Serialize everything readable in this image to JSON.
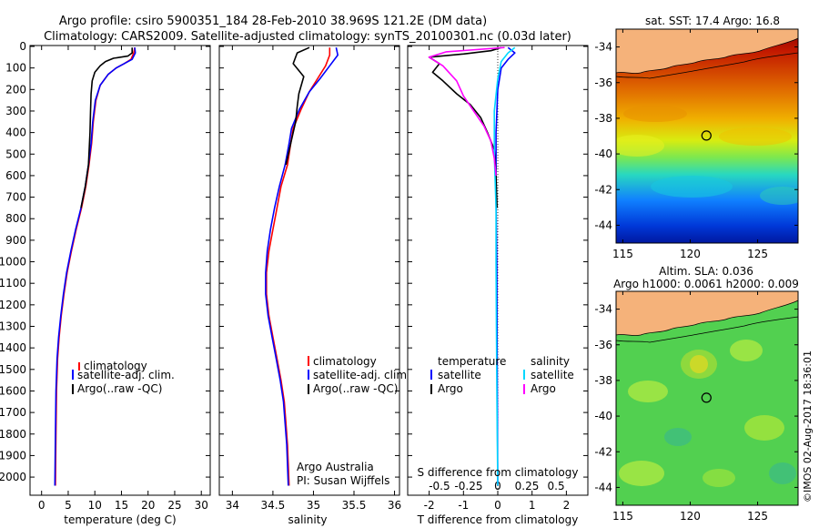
{
  "header": {
    "title_line1": "Argo profile: csiro 5900351_184 28-Feb-2010 38.969S 121.2E (DM data)",
    "title_line2": "Climatology: CARS2009. Satellite-adjusted climatology: synTS_20100301.nc (0.03d later)"
  },
  "chart_data": [
    {
      "id": "temperature",
      "type": "line",
      "xlabel": "temperature (deg C)",
      "xlim": [
        -2,
        31.5
      ],
      "ylim": [
        0,
        2080
      ],
      "x_ticks": [
        0,
        5,
        10,
        15,
        20,
        25,
        30
      ],
      "y_ticks": [
        0,
        100,
        200,
        300,
        400,
        500,
        600,
        700,
        800,
        900,
        1000,
        1100,
        1200,
        1300,
        1400,
        1500,
        1600,
        1700,
        1800,
        1900,
        2000
      ],
      "legend": [
        "climatology",
        "satellite-adj. clim.",
        "Argo(..raw -QC)"
      ],
      "series": [
        {
          "name": "climatology",
          "color": "#ff0000",
          "points": [
            [
              17.5,
              5
            ],
            [
              17.3,
              30
            ],
            [
              16.8,
              60
            ],
            [
              15.5,
              80
            ],
            [
              14,
              100
            ],
            [
              12.5,
              130
            ],
            [
              11,
              180
            ],
            [
              10.2,
              250
            ],
            [
              9.7,
              350
            ],
            [
              9.4,
              450
            ],
            [
              8.9,
              550
            ],
            [
              8.3,
              650
            ],
            [
              7.5,
              750
            ],
            [
              6.5,
              850
            ],
            [
              5.6,
              950
            ],
            [
              4.8,
              1050
            ],
            [
              4.2,
              1150
            ],
            [
              3.7,
              1250
            ],
            [
              3.3,
              1350
            ],
            [
              3,
              1450
            ],
            [
              2.8,
              1600
            ],
            [
              2.7,
              1800
            ],
            [
              2.6,
              2040
            ]
          ]
        },
        {
          "name": "satellite-adj. clim.",
          "color": "#0000ff",
          "points": [
            [
              17.5,
              5
            ],
            [
              17.6,
              30
            ],
            [
              17,
              60
            ],
            [
              15.5,
              80
            ],
            [
              14,
              100
            ],
            [
              12.5,
              130
            ],
            [
              11,
              180
            ],
            [
              10.1,
              250
            ],
            [
              9.6,
              350
            ],
            [
              9.3,
              450
            ],
            [
              8.8,
              550
            ],
            [
              8.2,
              650
            ],
            [
              7.4,
              750
            ],
            [
              6.4,
              850
            ],
            [
              5.5,
              950
            ],
            [
              4.7,
              1050
            ],
            [
              4.1,
              1150
            ],
            [
              3.6,
              1250
            ],
            [
              3.2,
              1350
            ],
            [
              2.9,
              1450
            ],
            [
              2.7,
              1600
            ],
            [
              2.6,
              1800
            ],
            [
              2.5,
              2040
            ]
          ]
        },
        {
          "name": "Argo(..raw -QC)",
          "color": "#000000",
          "points": [
            [
              17,
              5
            ],
            [
              17,
              30
            ],
            [
              16.2,
              45
            ],
            [
              13.5,
              55
            ],
            [
              12,
              70
            ],
            [
              11,
              90
            ],
            [
              10,
              120
            ],
            [
              9.5,
              160
            ],
            [
              9.3,
              220
            ],
            [
              9.2,
              300
            ],
            [
              9.1,
              400
            ],
            [
              8.8,
              550
            ],
            [
              8.2,
              650
            ],
            [
              7.4,
              750
            ]
          ]
        }
      ]
    },
    {
      "id": "salinity",
      "type": "line",
      "xlabel": "salinity",
      "xlim": [
        33.85,
        36.05
      ],
      "ylim": [
        0,
        2080
      ],
      "x_ticks": [
        34,
        34.5,
        35,
        35.5,
        36
      ],
      "legend": [
        "climatology",
        "satellite-adj. clim.",
        "Argo(..raw -QC)"
      ],
      "credit_line1": "Argo Australia",
      "credit_line2": "PI: Susan Wijffels",
      "series": [
        {
          "name": "climatology",
          "color": "#ff0000",
          "points": [
            [
              35.2,
              5
            ],
            [
              35.2,
              40
            ],
            [
              35.15,
              90
            ],
            [
              35.05,
              150
            ],
            [
              34.95,
              210
            ],
            [
              34.85,
              290
            ],
            [
              34.75,
              380
            ],
            [
              34.72,
              450
            ],
            [
              34.68,
              550
            ],
            [
              34.6,
              650
            ],
            [
              34.55,
              750
            ],
            [
              34.5,
              850
            ],
            [
              34.45,
              950
            ],
            [
              34.42,
              1050
            ],
            [
              34.42,
              1150
            ],
            [
              34.45,
              1250
            ],
            [
              34.5,
              1350
            ],
            [
              34.55,
              1450
            ],
            [
              34.6,
              1550
            ],
            [
              34.64,
              1650
            ],
            [
              34.66,
              1750
            ],
            [
              34.68,
              1850
            ],
            [
              34.7,
              2040
            ]
          ]
        },
        {
          "name": "satellite-adj. clim.",
          "color": "#0000ff",
          "points": [
            [
              35.28,
              5
            ],
            [
              35.3,
              40
            ],
            [
              35.2,
              90
            ],
            [
              35.08,
              150
            ],
            [
              34.95,
              210
            ],
            [
              34.83,
              290
            ],
            [
              34.73,
              380
            ],
            [
              34.7,
              450
            ],
            [
              34.65,
              550
            ],
            [
              34.58,
              650
            ],
            [
              34.52,
              750
            ],
            [
              34.47,
              850
            ],
            [
              34.43,
              950
            ],
            [
              34.41,
              1050
            ],
            [
              34.41,
              1150
            ],
            [
              34.44,
              1250
            ],
            [
              34.49,
              1350
            ],
            [
              34.54,
              1450
            ],
            [
              34.59,
              1550
            ],
            [
              34.63,
              1650
            ],
            [
              34.65,
              1750
            ],
            [
              34.67,
              1850
            ],
            [
              34.69,
              2040
            ]
          ]
        },
        {
          "name": "Argo(..raw -QC)",
          "color": "#000000",
          "points": [
            [
              34.95,
              5
            ],
            [
              34.8,
              30
            ],
            [
              34.75,
              80
            ],
            [
              34.88,
              140
            ],
            [
              34.82,
              220
            ],
            [
              34.8,
              280
            ],
            [
              34.78,
              350
            ],
            [
              34.75,
              400
            ],
            [
              34.72,
              450
            ],
            [
              34.66,
              550
            ]
          ]
        }
      ]
    },
    {
      "id": "difference",
      "type": "line",
      "xlabel": "T difference from climatology",
      "x2label": "S difference from climatology",
      "xlim": [
        -2.6,
        2.6
      ],
      "ylim": [
        0,
        2080
      ],
      "x_ticks": [
        -2,
        -1,
        0,
        1,
        2
      ],
      "x2_ticks": [
        "-0.5",
        "-0.25",
        "0",
        "0.25",
        "0.5"
      ],
      "legend_col1_title": "temperature",
      "legend_col2_title": "salinity",
      "legend_items": [
        "satellite",
        "Argo",
        "satellite",
        "Argo"
      ],
      "series": [
        {
          "name": "temperature satellite",
          "color": "#0000ff",
          "points": [
            [
              0.3,
              5
            ],
            [
              0.5,
              30
            ],
            [
              0.3,
              60
            ],
            [
              0.1,
              100
            ],
            [
              0,
              200
            ],
            [
              -0.05,
              400
            ],
            [
              -0.05,
              700
            ],
            [
              -0.03,
              1000
            ],
            [
              -0.02,
              1300
            ],
            [
              -0.01,
              1700
            ],
            [
              0,
              2040
            ]
          ]
        },
        {
          "name": "temperature Argo",
          "color": "#000000",
          "points": [
            [
              0.1,
              5
            ],
            [
              -0.2,
              20
            ],
            [
              -1,
              35
            ],
            [
              -2,
              50
            ],
            [
              -1.7,
              80
            ],
            [
              -1.9,
              120
            ],
            [
              -1.6,
              160
            ],
            [
              -1.2,
              220
            ],
            [
              -0.8,
              270
            ],
            [
              -0.5,
              330
            ],
            [
              -0.3,
              400
            ],
            [
              -0.1,
              480
            ],
            [
              -0.05,
              600
            ],
            [
              -0.02,
              750
            ]
          ]
        },
        {
          "name": "salinity satellite",
          "color": "#00d8ff",
          "points": [
            [
              0.5,
              5
            ],
            [
              0.3,
              30
            ],
            [
              0.1,
              70
            ],
            [
              0,
              150
            ],
            [
              -0.1,
              300
            ],
            [
              -0.1,
              500
            ],
            [
              -0.05,
              750
            ],
            [
              -0.05,
              1000
            ],
            [
              -0.04,
              1300
            ],
            [
              -0.02,
              1700
            ],
            [
              0,
              2040
            ]
          ]
        },
        {
          "name": "salinity Argo",
          "color": "#ff00ff",
          "points": [
            [
              0.2,
              5
            ],
            [
              -1.5,
              25
            ],
            [
              -2,
              50
            ],
            [
              -1.6,
              90
            ],
            [
              -1.2,
              160
            ],
            [
              -1,
              230
            ],
            [
              -0.7,
              300
            ],
            [
              -0.4,
              370
            ],
            [
              -0.2,
              440
            ],
            [
              -0.1,
              520
            ],
            [
              -0.05,
              600
            ]
          ]
        }
      ]
    },
    {
      "id": "sst_map",
      "type": "heatmap",
      "title": "sat. SST: 17.4  Argo: 16.8",
      "xlim": [
        114.5,
        128
      ],
      "ylim": [
        -45,
        -33
      ],
      "x_ticks": [
        115,
        120,
        125
      ],
      "y_ticks": [
        -34,
        -36,
        -38,
        -40,
        -42,
        -44
      ],
      "marker": {
        "lon": 121.2,
        "lat": -38.969
      }
    },
    {
      "id": "sla_map",
      "type": "heatmap",
      "title_line1": "Altim. SLA: 0.036",
      "title_line2": "Argo h1000: 0.0061 h2000: 0.009",
      "xlim": [
        114.5,
        128
      ],
      "ylim": [
        -45,
        -33
      ],
      "x_ticks": [
        115,
        120,
        125
      ],
      "y_ticks": [
        -34,
        -36,
        -38,
        -40,
        -42,
        -44
      ],
      "marker": {
        "lon": 121.2,
        "lat": -38.969
      }
    }
  ],
  "footer": {
    "stamp": "©IMOS 02-Aug-2017 18:36:01"
  },
  "colors": {
    "land": "#f5b27a",
    "axis": "#000000"
  }
}
